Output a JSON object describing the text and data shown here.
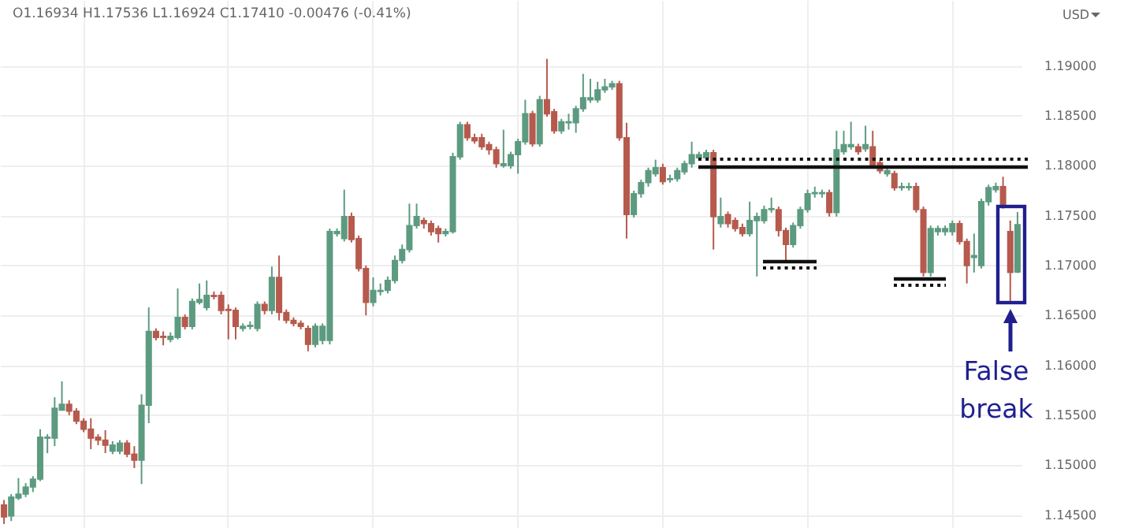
{
  "chart_data": {
    "type": "candlestick",
    "ohlc": [
      [
        1.146,
        1.1465,
        1.1441,
        1.1448
      ],
      [
        1.1449,
        1.1471,
        1.1444,
        1.1468
      ],
      [
        1.1467,
        1.1487,
        1.1465,
        1.1471
      ],
      [
        1.1471,
        1.1482,
        1.1468,
        1.1478
      ],
      [
        1.1478,
        1.1489,
        1.1473,
        1.1486
      ],
      [
        1.1486,
        1.1536,
        1.1484,
        1.1528
      ],
      [
        1.1527,
        1.1531,
        1.1512,
        1.1528
      ],
      [
        1.1527,
        1.1568,
        1.1519,
        1.1557
      ],
      [
        1.1555,
        1.1584,
        1.1555,
        1.1561
      ],
      [
        1.1561,
        1.1565,
        1.155,
        1.1554
      ],
      [
        1.1554,
        1.1557,
        1.1541,
        1.1544
      ],
      [
        1.1544,
        1.1547,
        1.1533,
        1.1536
      ],
      [
        1.1536,
        1.1547,
        1.1516,
        1.1527
      ],
      [
        1.1528,
        1.1531,
        1.152,
        1.1525
      ],
      [
        1.1525,
        1.1535,
        1.1512,
        1.152
      ],
      [
        1.1514,
        1.1524,
        1.1511,
        1.152
      ],
      [
        1.1514,
        1.1525,
        1.1511,
        1.1522
      ],
      [
        1.1522,
        1.1525,
        1.1508,
        1.1511
      ],
      [
        1.1511,
        1.1519,
        1.1497,
        1.1505
      ],
      [
        1.1505,
        1.1571,
        1.1481,
        1.156
      ],
      [
        1.156,
        1.1658,
        1.1542,
        1.1634
      ],
      [
        1.1634,
        1.1637,
        1.1625,
        1.1628
      ],
      [
        1.1629,
        1.1634,
        1.162,
        1.1628
      ],
      [
        1.1626,
        1.1633,
        1.1623,
        1.1629
      ],
      [
        1.1628,
        1.1677,
        1.1626,
        1.1648
      ],
      [
        1.1648,
        1.1651,
        1.1636,
        1.1639
      ],
      [
        1.1639,
        1.1667,
        1.1636,
        1.1664
      ],
      [
        1.1663,
        1.1682,
        1.1661,
        1.1666
      ],
      [
        1.1658,
        1.1685,
        1.1655,
        1.167
      ],
      [
        1.167,
        1.1674,
        1.1666,
        1.1669
      ],
      [
        1.167,
        1.1674,
        1.1651,
        1.1655
      ],
      [
        1.1656,
        1.1661,
        1.1626,
        1.1655
      ],
      [
        1.1655,
        1.1658,
        1.1626,
        1.1639
      ],
      [
        1.1637,
        1.1642,
        1.1634,
        1.1639
      ],
      [
        1.1639,
        1.1644,
        1.1636,
        1.164
      ],
      [
        1.1637,
        1.1664,
        1.1634,
        1.1661
      ],
      [
        1.1661,
        1.1664,
        1.1651,
        1.1655
      ],
      [
        1.1655,
        1.1699,
        1.1651,
        1.1688
      ],
      [
        1.1688,
        1.171,
        1.1645,
        1.1653
      ],
      [
        1.1653,
        1.1656,
        1.1642,
        1.1645
      ],
      [
        1.1645,
        1.1648,
        1.1639,
        1.1642
      ],
      [
        1.1642,
        1.1645,
        1.1636,
        1.1639
      ],
      [
        1.1637,
        1.164,
        1.1614,
        1.1621
      ],
      [
        1.1621,
        1.1642,
        1.1618,
        1.1639
      ],
      [
        1.1625,
        1.1642,
        1.1621,
        1.1639
      ],
      [
        1.1625,
        1.1737,
        1.1621,
        1.1734
      ],
      [
        1.1732,
        1.1737,
        1.1729,
        1.1734
      ],
      [
        1.1727,
        1.1776,
        1.1724,
        1.1749
      ],
      [
        1.1749,
        1.1753,
        1.1723,
        1.1726
      ],
      [
        1.1727,
        1.173,
        1.1694,
        1.1697
      ],
      [
        1.1697,
        1.17,
        1.165,
        1.1663
      ],
      [
        1.1663,
        1.1688,
        1.1659,
        1.1675
      ],
      [
        1.1674,
        1.1682,
        1.167,
        1.1675
      ],
      [
        1.1675,
        1.1689,
        1.1672,
        1.1685
      ],
      [
        1.1685,
        1.171,
        1.1682,
        1.1705
      ],
      [
        1.1705,
        1.1721,
        1.1702,
        1.1716
      ],
      [
        1.1716,
        1.1762,
        1.1713,
        1.174
      ],
      [
        1.174,
        1.1762,
        1.1737,
        1.1749
      ],
      [
        1.1745,
        1.1748,
        1.1737,
        1.1742
      ],
      [
        1.1742,
        1.1745,
        1.173,
        1.1734
      ],
      [
        1.1737,
        1.174,
        1.1723,
        1.1732
      ],
      [
        1.1732,
        1.1737,
        1.1729,
        1.1734
      ],
      [
        1.1734,
        1.1813,
        1.1732,
        1.1809
      ],
      [
        1.1809,
        1.1844,
        1.1806,
        1.1841
      ],
      [
        1.1841,
        1.1844,
        1.1825,
        1.1828
      ],
      [
        1.1828,
        1.1832,
        1.1822,
        1.1825
      ],
      [
        1.1828,
        1.1832,
        1.1816,
        1.1819
      ],
      [
        1.1821,
        1.1824,
        1.1811,
        1.1816
      ],
      [
        1.1816,
        1.1819,
        1.1798,
        1.1802
      ],
      [
        1.18,
        1.1836,
        1.1798,
        1.1802
      ],
      [
        1.18,
        1.1814,
        1.1797,
        1.1811
      ],
      [
        1.1811,
        1.1827,
        1.1792,
        1.1824
      ],
      [
        1.1824,
        1.1866,
        1.1821,
        1.1852
      ],
      [
        1.1852,
        1.1855,
        1.1819,
        1.1822
      ],
      [
        1.1822,
        1.187,
        1.1819,
        1.1866
      ],
      [
        1.1866,
        1.1907,
        1.1849,
        1.1852
      ],
      [
        1.1854,
        1.1857,
        1.1832,
        1.1835
      ],
      [
        1.1835,
        1.1847,
        1.1832,
        1.1844
      ],
      [
        1.1843,
        1.1852,
        1.1836,
        1.1844
      ],
      [
        1.1843,
        1.186,
        1.1833,
        1.1857
      ],
      [
        1.1857,
        1.1892,
        1.1854,
        1.1868
      ],
      [
        1.1866,
        1.1887,
        1.1863,
        1.1868
      ],
      [
        1.1866,
        1.1884,
        1.1863,
        1.1876
      ],
      [
        1.1876,
        1.1887,
        1.1873,
        1.1879
      ],
      [
        1.1879,
        1.1885,
        1.1876,
        1.1882
      ],
      [
        1.1882,
        1.1885,
        1.1825,
        1.1828
      ],
      [
        1.1828,
        1.1843,
        1.1727,
        1.1751
      ],
      [
        1.1751,
        1.1775,
        1.1748,
        1.1772
      ],
      [
        1.1772,
        1.1786,
        1.1768,
        1.1783
      ],
      [
        1.1783,
        1.1798,
        1.1779,
        1.1795
      ],
      [
        1.1792,
        1.1806,
        1.1789,
        1.1798
      ],
      [
        1.1798,
        1.1802,
        1.1781,
        1.1784
      ],
      [
        1.1786,
        1.1791,
        1.1783,
        1.1787
      ],
      [
        1.1787,
        1.1798,
        1.1784,
        1.1795
      ],
      [
        1.1794,
        1.1805,
        1.1791,
        1.1802
      ],
      [
        1.1802,
        1.1824,
        1.1798,
        1.1811
      ],
      [
        1.1808,
        1.1814,
        1.1805,
        1.1811
      ],
      [
        1.1808,
        1.1816,
        1.1805,
        1.1813
      ],
      [
        1.1813,
        1.1816,
        1.1716,
        1.1749
      ],
      [
        1.1742,
        1.1768,
        1.1738,
        1.1749
      ],
      [
        1.1751,
        1.1754,
        1.1738,
        1.1742
      ],
      [
        1.1745,
        1.1748,
        1.1734,
        1.1737
      ],
      [
        1.1738,
        1.1742,
        1.1729,
        1.1732
      ],
      [
        1.1732,
        1.1764,
        1.1729,
        1.1745
      ],
      [
        1.1745,
        1.1753,
        1.1689,
        1.1749
      ],
      [
        1.1745,
        1.176,
        1.1742,
        1.1756
      ],
      [
        1.1756,
        1.1768,
        1.1753,
        1.1757
      ],
      [
        1.1756,
        1.1759,
        1.1729,
        1.1735
      ],
      [
        1.1735,
        1.1738,
        1.1705,
        1.1721
      ],
      [
        1.1721,
        1.1743,
        1.1718,
        1.174
      ],
      [
        1.174,
        1.1759,
        1.1737,
        1.1756
      ],
      [
        1.1756,
        1.1776,
        1.1753,
        1.1772
      ],
      [
        1.1772,
        1.1779,
        1.1768,
        1.1773
      ],
      [
        1.1772,
        1.1776,
        1.1768,
        1.1773
      ],
      [
        1.1773,
        1.1776,
        1.1749,
        1.1753
      ],
      [
        1.1753,
        1.1835,
        1.1749,
        1.1816
      ],
      [
        1.1814,
        1.1835,
        1.1811,
        1.1821
      ],
      [
        1.1819,
        1.1844,
        1.1816,
        1.1821
      ],
      [
        1.1819,
        1.1822,
        1.1811,
        1.1814
      ],
      [
        1.1817,
        1.184,
        1.1814,
        1.1821
      ],
      [
        1.1819,
        1.1835,
        1.1797,
        1.18
      ],
      [
        1.1803,
        1.1806,
        1.1792,
        1.1795
      ],
      [
        1.1792,
        1.1798,
        1.1789,
        1.1795
      ],
      [
        1.1792,
        1.1795,
        1.1775,
        1.1778
      ],
      [
        1.1778,
        1.1783,
        1.1775,
        1.1779
      ],
      [
        1.1778,
        1.1783,
        1.1775,
        1.1779
      ],
      [
        1.1779,
        1.1783,
        1.1753,
        1.1756
      ],
      [
        1.1756,
        1.1759,
        1.1689,
        1.1693
      ],
      [
        1.1693,
        1.174,
        1.1689,
        1.1737
      ],
      [
        1.1734,
        1.174,
        1.173,
        1.1737
      ],
      [
        1.1734,
        1.174,
        1.173,
        1.1737
      ],
      [
        1.1734,
        1.1745,
        1.173,
        1.1742
      ],
      [
        1.1742,
        1.1745,
        1.1721,
        1.1724
      ],
      [
        1.1724,
        1.1727,
        1.1682,
        1.17
      ],
      [
        1.1708,
        1.1732,
        1.1693,
        1.171
      ],
      [
        1.17,
        1.1767,
        1.1697,
        1.1764
      ],
      [
        1.1764,
        1.1781,
        1.176,
        1.1778
      ],
      [
        1.1776,
        1.1783,
        1.1773,
        1.1779
      ],
      [
        1.1779,
        1.1789,
        1.1757,
        1.176
      ],
      [
        1.1734,
        1.1745,
        1.1663,
        1.1693
      ],
      [
        1.16934,
        1.17536,
        1.16924,
        1.1741
      ]
    ],
    "categories": [
      null,
      null,
      null,
      null,
      null,
      null,
      null,
      null,
      null,
      null,
      null,
      null,
      null,
      null,
      null,
      null,
      null,
      null,
      null,
      null,
      null,
      null,
      null,
      null,
      null,
      null,
      null,
      null,
      null,
      null,
      null,
      null,
      null,
      null,
      null,
      null,
      null,
      null,
      null,
      null,
      null,
      null,
      null,
      null,
      null,
      null,
      null,
      null,
      null,
      null,
      null,
      null,
      null,
      null,
      null,
      null,
      null,
      null,
      null,
      null,
      null,
      null,
      null,
      null,
      null,
      null,
      null,
      null,
      null,
      null,
      null,
      null,
      null,
      null,
      null,
      null,
      null,
      null,
      null,
      null,
      null,
      null,
      null,
      null,
      null,
      null,
      null,
      null,
      null,
      null,
      null,
      null,
      null,
      null,
      null,
      null,
      null,
      null,
      null,
      null,
      null,
      null,
      null,
      null,
      null,
      null,
      null,
      null,
      null,
      null,
      null,
      null,
      null,
      null,
      null,
      null,
      null,
      null,
      null,
      null,
      null,
      null,
      null,
      null,
      null,
      null,
      null,
      null,
      null,
      null,
      null,
      null,
      null,
      null,
      null,
      null,
      null,
      null,
      null,
      null,
      null
    ],
    "ylim": [
      1.1437,
      1.1966
    ],
    "yticks": [
      {
        "value": 1.145,
        "label": "1.14500"
      },
      {
        "value": 1.15,
        "label": "1.15000"
      },
      {
        "value": 1.155,
        "label": "1.15500"
      },
      {
        "value": 1.16,
        "label": "1.16000"
      },
      {
        "value": 1.165,
        "label": "1.16500"
      },
      {
        "value": 1.17,
        "label": "1.17000"
      },
      {
        "value": 1.175,
        "label": "1.17500"
      },
      {
        "value": 1.18,
        "label": "1.18000"
      },
      {
        "value": 1.185,
        "label": "1.18500"
      },
      {
        "value": 1.19,
        "label": "1.19000"
      }
    ],
    "tick_labels": "y",
    "grid": true,
    "annotations": [
      "O1.16934 H1.17536 L1.16924 C1.17410 -0.00476 (-0.41%)",
      "USD",
      "False break"
    ]
  }
}
